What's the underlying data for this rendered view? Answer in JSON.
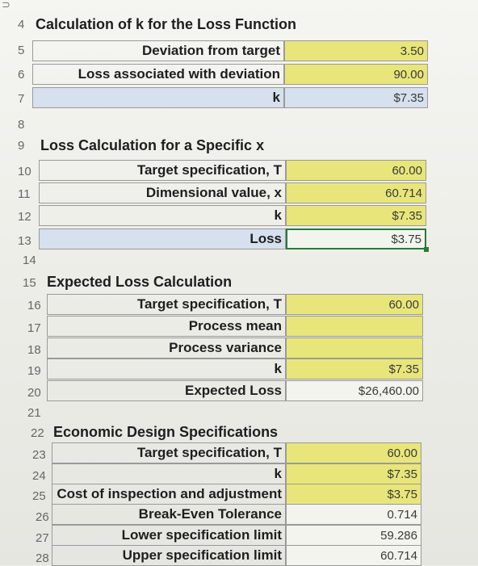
{
  "top_row_glyph": "⊃",
  "section1": {
    "heading_num": "4",
    "heading": "Calculation of k for the Loss Function",
    "rows": [
      {
        "num": "5",
        "label": "Deviation from target",
        "value": "3.50"
      },
      {
        "num": "6",
        "label": "Loss associated with deviation",
        "value": "90.00"
      },
      {
        "num": "7",
        "label": "k",
        "value": "$7.35"
      }
    ]
  },
  "blank_row_8": "8",
  "section2": {
    "heading_num": "9",
    "heading": "Loss Calculation for a Specific x",
    "rows": [
      {
        "num": "10",
        "label": "Target specification, T",
        "value": "60.00"
      },
      {
        "num": "11",
        "label": "Dimensional value, x",
        "value": "60.714"
      },
      {
        "num": "12",
        "label": "k",
        "value": "$7.35"
      },
      {
        "num": "13",
        "label": "Loss",
        "value": "$3.75"
      }
    ]
  },
  "blank_row_14": "14",
  "section3": {
    "heading_num": "15",
    "heading": "Expected Loss Calculation",
    "rows": [
      {
        "num": "16",
        "label": "Target specification, T",
        "value": "60.00"
      },
      {
        "num": "17",
        "label": "Process mean",
        "value": ""
      },
      {
        "num": "18",
        "label": "Process variance",
        "value": ""
      },
      {
        "num": "19",
        "label": "k",
        "value": "$7.35"
      },
      {
        "num": "20",
        "label": "Expected Loss",
        "value": "$26,460.00"
      }
    ]
  },
  "blank_row_21": "21",
  "section4": {
    "heading_num": "22",
    "heading": "Economic Design Specifications",
    "rows": [
      {
        "num": "23",
        "label": "Target specification, T",
        "value": "60.00"
      },
      {
        "num": "24",
        "label": "k",
        "value": "$7.35"
      },
      {
        "num": "25",
        "label": "Cost of inspection and adjustment",
        "value": "$3.75"
      },
      {
        "num": "26",
        "label": "Break-Even Tolerance",
        "value": "0.714"
      },
      {
        "num": "27",
        "label": "Lower specification limit",
        "value": "59.286"
      },
      {
        "num": "28",
        "label": "Upper specification limit",
        "value": "60.714"
      }
    ]
  },
  "colors": {
    "yellow": "#e8e67a",
    "blue": "#d6e0ee",
    "selection": "#2a7a3a"
  }
}
